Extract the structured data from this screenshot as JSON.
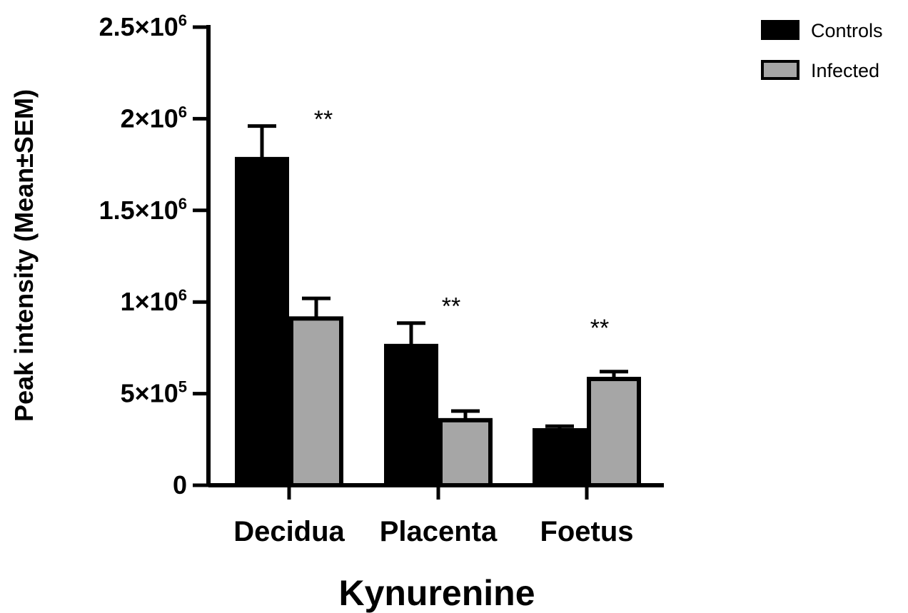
{
  "chart_data": {
    "type": "bar",
    "categories": [
      "Decidua",
      "Placenta",
      "Foetus"
    ],
    "series": [
      {
        "name": "Controls",
        "values": [
          1780000,
          760000,
          300000
        ],
        "errors": [
          180000,
          125000,
          22000
        ],
        "color": "#000000"
      },
      {
        "name": "Infected",
        "values": [
          910000,
          355000,
          580000
        ],
        "errors": [
          110000,
          50000,
          40000
        ],
        "color": "#a6a6a6"
      }
    ],
    "title": "",
    "xlabel": "Kynurenine",
    "ylabel": "Peak intensity (Mean±SEM)",
    "ylim": [
      0,
      2500000
    ],
    "yticks": [
      {
        "value": 0,
        "mantissa": "0",
        "exp": ""
      },
      {
        "value": 500000,
        "mantissa": "5×10",
        "exp": "5"
      },
      {
        "value": 1000000,
        "mantissa": "1×10",
        "exp": "6"
      },
      {
        "value": 1500000,
        "mantissa": "1.5×10",
        "exp": "6"
      },
      {
        "value": 2000000,
        "mantissa": "2×10",
        "exp": "6"
      },
      {
        "value": 2500000,
        "mantissa": "2.5×10",
        "exp": "6"
      }
    ],
    "annotations": [
      {
        "category": "Decidua",
        "text": "**",
        "y": 2000000
      },
      {
        "category": "Placenta",
        "text": "**",
        "y": 980000
      },
      {
        "category": "Foetus",
        "text": "**",
        "y": 860000
      }
    ],
    "legend": {
      "position": "top-right",
      "entries": [
        "Controls",
        "Infected"
      ]
    },
    "grid": false
  }
}
